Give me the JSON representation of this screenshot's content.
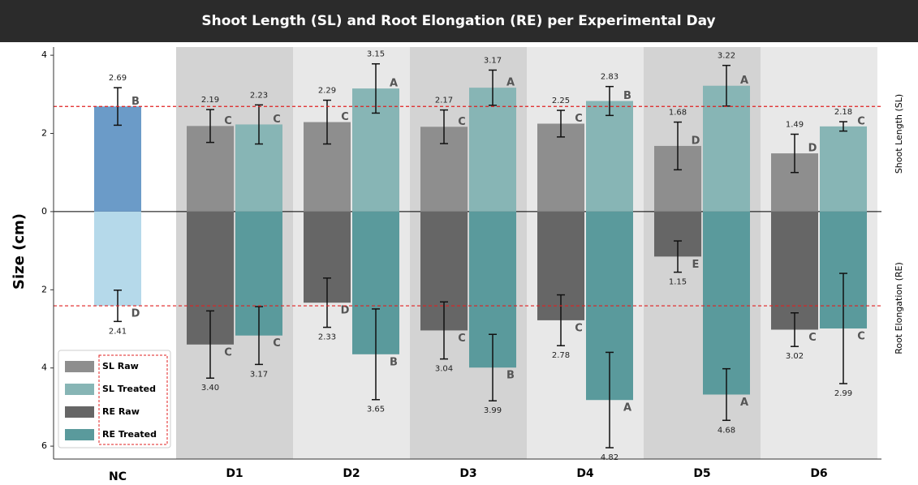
{
  "chart_data": {
    "type": "bar",
    "title": "Shoot Length (SL) and Root Elongation (RE) per Experimental Day",
    "y_label": "Size (cm)",
    "side_labels": {
      "top": "Shoot Length (SL)",
      "bottom": "Root Elongation (RE)"
    },
    "categories": [
      "NC",
      "D1",
      "D2",
      "D3",
      "D4",
      "D5",
      "D6"
    ],
    "ylim": [
      -6.33,
      4.21
    ],
    "yticks": [
      {
        "value": -6,
        "label": "6"
      },
      {
        "value": -4,
        "label": "4"
      },
      {
        "value": -2,
        "label": "2"
      },
      0,
      2,
      4
    ],
    "reference_lines_from_control": true,
    "control": {
      "sl": {
        "value": 2.69,
        "error": 0.48,
        "letter": "B",
        "color": "#6b9bc8"
      },
      "re": {
        "value": -2.41,
        "value_label": "2.41",
        "error": 0.4,
        "letter": "D",
        "color": "#b5d9ea"
      }
    },
    "series": [
      {
        "name": "SL Raw",
        "color": "#8e8e8e",
        "values": [
          null,
          2.19,
          2.29,
          2.17,
          2.25,
          1.68,
          1.49
        ],
        "errors": [
          null,
          0.42,
          0.56,
          0.43,
          0.34,
          0.61,
          0.49
        ],
        "letters": [
          null,
          "C",
          "C",
          "C",
          "C",
          "D",
          "D"
        ]
      },
      {
        "name": "SL Treated",
        "color": "#87b5b5",
        "values": [
          null,
          2.23,
          3.15,
          3.17,
          2.83,
          3.22,
          2.18
        ],
        "errors": [
          null,
          0.5,
          0.63,
          0.45,
          0.37,
          0.52,
          0.12
        ],
        "letters": [
          null,
          "C",
          "A",
          "A",
          "B",
          "A",
          "C"
        ]
      },
      {
        "name": "RE Raw",
        "color": "#666666",
        "values": [
          null,
          -3.4,
          -2.33,
          -3.04,
          -2.78,
          -1.15,
          -3.02
        ],
        "value_labels": [
          null,
          "3.40",
          "2.33",
          "3.04",
          "2.78",
          "1.15",
          "3.02"
        ],
        "errors": [
          null,
          0.86,
          0.63,
          0.73,
          0.65,
          0.4,
          0.43
        ],
        "letters": [
          null,
          "C",
          "D",
          "C",
          "C",
          "E",
          "C"
        ]
      },
      {
        "name": "RE Treated",
        "color": "#5a9a9c",
        "values": [
          null,
          -3.17,
          -3.65,
          -3.99,
          -4.82,
          -4.68,
          -2.99
        ],
        "value_labels": [
          null,
          "3.17",
          "3.65",
          "3.99",
          "4.82",
          "4.68",
          "2.99"
        ],
        "errors": [
          null,
          0.74,
          1.16,
          0.85,
          1.22,
          0.66,
          1.41
        ],
        "letters": [
          null,
          "C",
          "B",
          "B",
          "A",
          "A",
          "C"
        ]
      }
    ],
    "band_colors": [
      "#ffffff",
      "#d3d3d3",
      "#e8e8e8"
    ],
    "legend": "lower left"
  }
}
